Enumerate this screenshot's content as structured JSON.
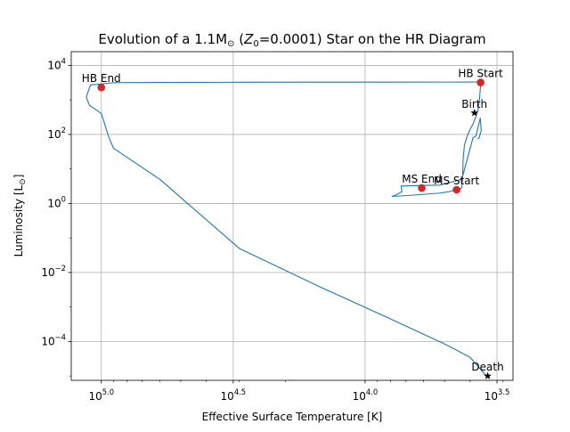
{
  "chart_data": {
    "type": "line",
    "title": {
      "prefix": "Evolution of a 1.1M",
      "sun": "⊙",
      "open": " (",
      "z_var": "Z",
      "z_sub": "0",
      "z_val": "=0.0001) Star on the HR Diagram"
    },
    "xlabel": "Effective Surface Temperature [K]",
    "ylabel": {
      "text": "Luminosity [L",
      "sun": "⊙",
      "close": "]"
    },
    "x_scale": "log",
    "x_inverted": true,
    "y_scale": "log",
    "xlim": [
      130000,
      2750
    ],
    "ylim": [
      7.5e-06,
      25000
    ],
    "x_ticks": [
      {
        "value": 100000,
        "base": "10",
        "exp": "5.0"
      },
      {
        "value": 31623,
        "base": "10",
        "exp": "4.5"
      },
      {
        "value": 10000,
        "base": "10",
        "exp": "4.0"
      },
      {
        "value": 3162,
        "base": "10",
        "exp": "3.5"
      }
    ],
    "y_ticks": [
      {
        "value": 10000,
        "base": "10",
        "exp": "4"
      },
      {
        "value": 100,
        "base": "10",
        "exp": "2"
      },
      {
        "value": 1,
        "base": "10",
        "exp": "0"
      },
      {
        "value": 0.01,
        "base": "10",
        "exp": "−2"
      },
      {
        "value": 0.0001,
        "base": "10",
        "exp": "−4"
      }
    ],
    "grid": true,
    "legend": "none",
    "track_color": "#1f77b4",
    "marker_color": "#d62728",
    "star_color": "#000000",
    "series": [
      {
        "x": [
          3750,
          3700,
          3630,
          3660,
          3800,
          3900,
          4300,
          5200,
          6300,
          7300,
          7250,
          7600,
          7900,
          6900,
          5200,
          4800,
          4600,
          4380,
          4300,
          4270,
          4260,
          4250,
          4200,
          4100,
          4000,
          3900,
          3820,
          3770,
          3740,
          3720,
          3700,
          3680,
          3660,
          3650,
          3640,
          3635,
          3640,
          3660,
          3700,
          3800,
          4000,
          5000,
          8000,
          15000,
          30000,
          60000,
          90000,
          110000,
          114000,
          111000,
          104000,
          100000,
          98000,
          96000,
          94000,
          92000,
          90000,
          60000,
          30000,
          15000,
          8000,
          5000,
          4000,
          3470
        ],
        "y": [
          75,
          78,
          130,
          300,
          90,
          80,
          5.0,
          3.4,
          3.3,
          3.2,
          2.2,
          1.8,
          1.6,
          1.7,
          2.0,
          2.2,
          2.4,
          2.6,
          2.9,
          5,
          10,
          20,
          50,
          90,
          140,
          200,
          300,
          400,
          500,
          600,
          800,
          1200,
          2000,
          2600,
          3000,
          3400,
          3500,
          3450,
          3350,
          3320,
          3300,
          3290,
          3280,
          3270,
          3250,
          3200,
          3150,
          2700,
          1200,
          700,
          500,
          400,
          250,
          150,
          90,
          60,
          40,
          5,
          0.05,
          0.004,
          0.00045,
          8.5e-05,
          3.5e-05,
          1e-05
        ]
      }
    ],
    "markers": [
      {
        "label": "HB End",
        "x": 100000,
        "y": 2300
      },
      {
        "label": "HB Start",
        "x": 3650,
        "y": 3200
      },
      {
        "label": "MS End",
        "x": 6100,
        "y": 2.8
      },
      {
        "label": "MS Start",
        "x": 4500,
        "y": 2.5
      }
    ],
    "stars": [
      {
        "label": "Birth",
        "x": 3850,
        "y": 420
      },
      {
        "label": "Death",
        "x": 3430,
        "y": 1e-05
      }
    ]
  }
}
